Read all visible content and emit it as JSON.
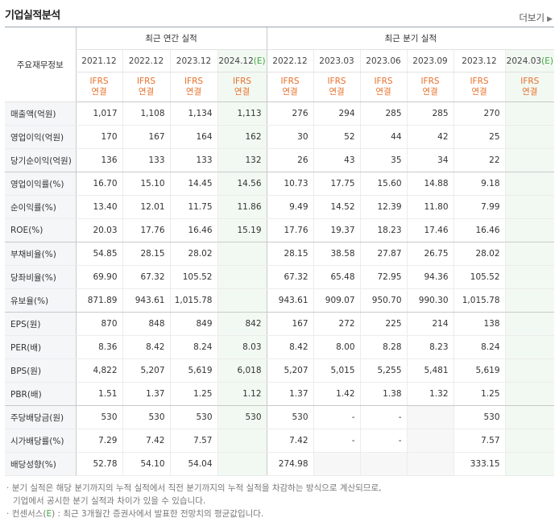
{
  "title": "기업실적분석",
  "more": {
    "label": "더보기",
    "icon": "chevron-right-icon"
  },
  "header": {
    "label_col": "주요재무정보",
    "annual_group": "최근 연간 실적",
    "quarter_group": "최근 분기 실적",
    "annual_periods": [
      {
        "base": "2021.12",
        "est": ""
      },
      {
        "base": "2022.12",
        "est": ""
      },
      {
        "base": "2023.12",
        "est": ""
      },
      {
        "base": "2024.12",
        "est": "(E)"
      }
    ],
    "quarter_periods": [
      {
        "base": "2022.12",
        "est": ""
      },
      {
        "base": "2023.03",
        "est": ""
      },
      {
        "base": "2023.06",
        "est": ""
      },
      {
        "base": "2023.09",
        "est": ""
      },
      {
        "base": "2023.12",
        "est": ""
      },
      {
        "base": "2024.03",
        "est": "(E)"
      }
    ],
    "basis_line1": "IFRS",
    "basis_line2": "연결"
  },
  "rows": [
    {
      "label": "매출액(억원)",
      "values": [
        "1,017",
        "1,108",
        "1,134",
        "1,113",
        "276",
        "294",
        "285",
        "285",
        "270",
        ""
      ]
    },
    {
      "label": "영업이익(억원)",
      "values": [
        "170",
        "167",
        "164",
        "162",
        "30",
        "52",
        "44",
        "42",
        "25",
        ""
      ]
    },
    {
      "label": "당기순이익(억원)",
      "values": [
        "136",
        "133",
        "133",
        "132",
        "26",
        "43",
        "35",
        "34",
        "22",
        ""
      ]
    },
    {
      "label": "영업이익률(%)",
      "values": [
        "16.70",
        "15.10",
        "14.45",
        "14.56",
        "10.73",
        "17.75",
        "15.60",
        "14.88",
        "9.18",
        ""
      ]
    },
    {
      "label": "순이익률(%)",
      "values": [
        "13.40",
        "12.01",
        "11.75",
        "11.86",
        "9.49",
        "14.52",
        "12.39",
        "11.80",
        "7.99",
        ""
      ]
    },
    {
      "label": "ROE(%)",
      "values": [
        "20.03",
        "17.76",
        "16.46",
        "15.19",
        "17.76",
        "19.37",
        "18.23",
        "17.46",
        "16.46",
        ""
      ]
    },
    {
      "label": "부채비율(%)",
      "values": [
        "54.85",
        "28.15",
        "28.02",
        "",
        "28.15",
        "38.58",
        "27.87",
        "26.75",
        "28.02",
        ""
      ]
    },
    {
      "label": "당좌비율(%)",
      "values": [
        "69.90",
        "67.32",
        "105.52",
        "",
        "67.32",
        "65.48",
        "72.95",
        "94.36",
        "105.52",
        ""
      ]
    },
    {
      "label": "유보율(%)",
      "values": [
        "871.89",
        "943.61",
        "1,015.78",
        "",
        "943.61",
        "909.07",
        "950.70",
        "990.30",
        "1,015.78",
        ""
      ]
    },
    {
      "label": "EPS(원)",
      "values": [
        "870",
        "848",
        "849",
        "842",
        "167",
        "272",
        "225",
        "214",
        "138",
        ""
      ]
    },
    {
      "label": "PER(배)",
      "values": [
        "8.36",
        "8.42",
        "8.24",
        "8.03",
        "8.42",
        "8.00",
        "8.28",
        "8.23",
        "8.24",
        ""
      ]
    },
    {
      "label": "BPS(원)",
      "values": [
        "4,822",
        "5,207",
        "5,619",
        "6,018",
        "5,207",
        "5,015",
        "5,255",
        "5,481",
        "5,619",
        ""
      ]
    },
    {
      "label": "PBR(배)",
      "values": [
        "1.51",
        "1.37",
        "1.25",
        "1.12",
        "1.37",
        "1.42",
        "1.38",
        "1.32",
        "1.25",
        ""
      ]
    },
    {
      "label": "주당배당금(원)",
      "values": [
        "530",
        "530",
        "530",
        "530",
        "530",
        "-",
        "-",
        "",
        "530",
        ""
      ]
    },
    {
      "label": "시가배당률(%)",
      "values": [
        "7.29",
        "7.42",
        "7.57",
        "",
        "7.42",
        "-",
        "-",
        "",
        "7.57",
        ""
      ]
    },
    {
      "label": "배당성향(%)",
      "values": [
        "52.78",
        "54.10",
        "54.04",
        "",
        "274.98",
        "",
        "",
        "",
        "333.15",
        ""
      ]
    }
  ],
  "notes": {
    "line1": "분기 실적은 해당 분기까지의 누적 실적에서 직전 분기까지의 누적 실적을 차감하는 방식으로 계산되므로,",
    "line2": "기업에서 공시한 분기 실적과 차이가 있을 수 있습니다.",
    "line3_pre": "컨센서스(",
    "line3_e": "E",
    "line3_post": ") : 최근 3개월간 증권사에서 발표한 전망치의 평균값입니다."
  }
}
